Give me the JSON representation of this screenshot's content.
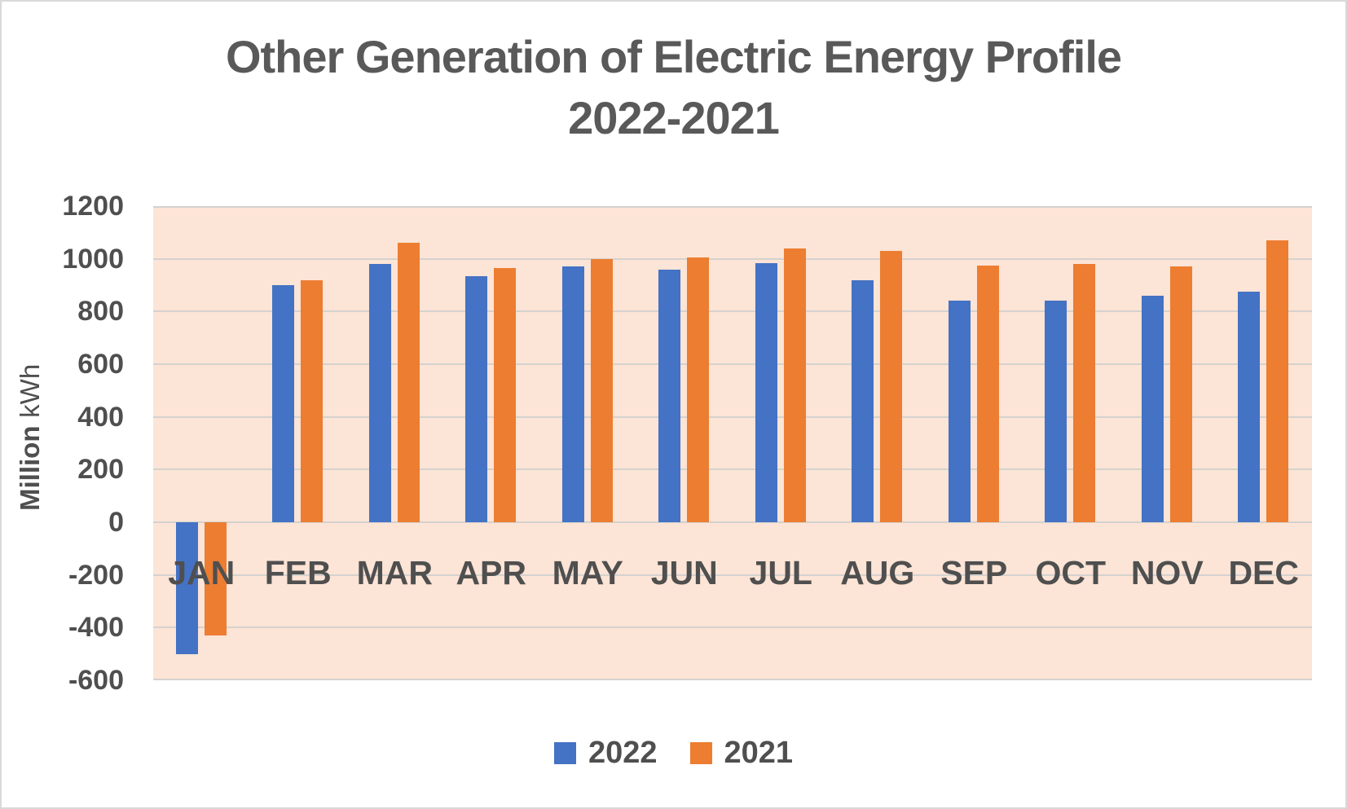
{
  "title": {
    "line1": "Other Generation of Electric Energy Profile",
    "line2": "2022-2021"
  },
  "y_axis": {
    "title_bold": "Million",
    "title_unit": " kWh",
    "ticks": [
      {
        "value": 1200,
        "label": "1200"
      },
      {
        "value": 1000,
        "label": "1000"
      },
      {
        "value": 800,
        "label": "800"
      },
      {
        "value": 600,
        "label": "600"
      },
      {
        "value": 400,
        "label": "400"
      },
      {
        "value": 200,
        "label": "200"
      },
      {
        "value": 0,
        "label": "0"
      },
      {
        "value": -200,
        "label": "-200"
      },
      {
        "value": -400,
        "label": "-400"
      },
      {
        "value": -600,
        "label": "-600"
      }
    ]
  },
  "x_axis": {
    "categories": [
      "JAN",
      "FEB",
      "MAR",
      "APR",
      "MAY",
      "JUN",
      "JUL",
      "AUG",
      "SEP",
      "OCT",
      "NOV",
      "DEC"
    ]
  },
  "legend": {
    "items": [
      {
        "label": "2022",
        "color": "#4472C4"
      },
      {
        "label": "2021",
        "color": "#ED7D31"
      }
    ]
  },
  "colors": {
    "series_2022": "#4472C4",
    "series_2021": "#ED7D31",
    "plot_background": "#FCE4D6",
    "gridline": "#D5D2CE",
    "text": "#595959",
    "frame_border": "#D9D9D9"
  },
  "chart_data": {
    "type": "bar",
    "title": "Other Generation of Electric Energy Profile 2022-2021",
    "xlabel": "",
    "ylabel": "Million kWh",
    "categories": [
      "JAN",
      "FEB",
      "MAR",
      "APR",
      "MAY",
      "JUN",
      "JUL",
      "AUG",
      "SEP",
      "OCT",
      "NOV",
      "DEC"
    ],
    "series": [
      {
        "name": "2022",
        "color": "#4472C4",
        "values": [
          -500,
          900,
          980,
          935,
          970,
          960,
          985,
          920,
          840,
          840,
          860,
          875
        ]
      },
      {
        "name": "2021",
        "color": "#ED7D31",
        "values": [
          -430,
          920,
          1060,
          965,
          1000,
          1005,
          1040,
          1030,
          975,
          980,
          970,
          1070
        ]
      }
    ],
    "ylim": [
      -600,
      1200
    ],
    "ytick_step": 200,
    "grid": true,
    "legend_position": "bottom"
  }
}
